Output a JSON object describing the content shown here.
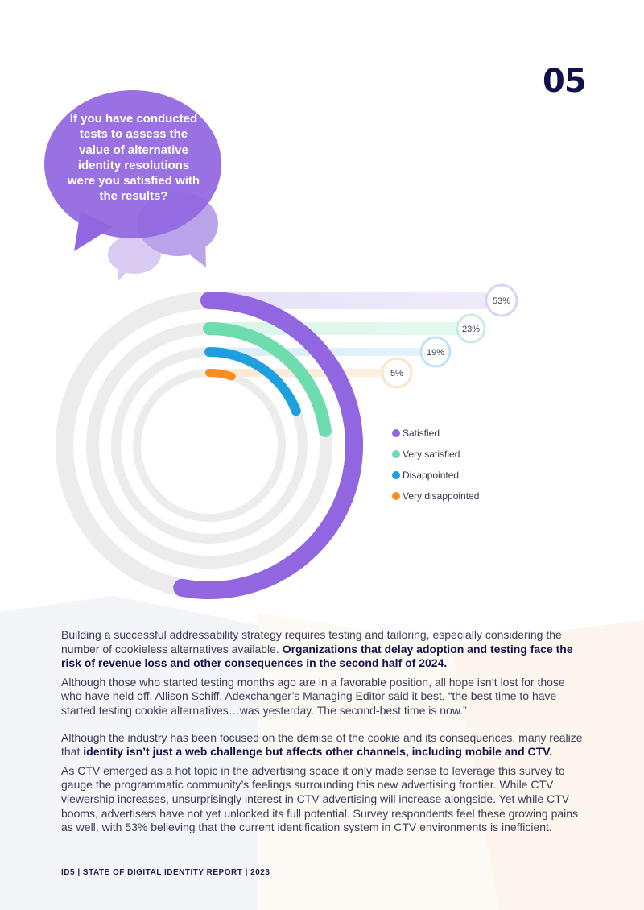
{
  "page_number": "05",
  "question": "If you have conducted tests to assess the value of alternative identity resolutions were you satisfied with the results?",
  "chart_data": {
    "type": "radial-bar",
    "categories": [
      "Satisfied",
      "Very satisfied",
      "Disappointed",
      "Very disappointed"
    ],
    "values": [
      53,
      23,
      19,
      5
    ],
    "value_labels": [
      "53%",
      "23%",
      "19%",
      "5%"
    ],
    "colors": [
      "#9166e0",
      "#6fdcb0",
      "#1ea0e0",
      "#fb8c1e"
    ],
    "track_color": "#ececec",
    "ylim": [
      0,
      100
    ],
    "legend_position": "right"
  },
  "paragraphs": [
    {
      "parts": [
        {
          "text": "Building a successful addressability strategy requires testing and tailoring, especially considering the number of cookieless alternatives available. ",
          "bold": false
        },
        {
          "text": "Organizations that delay adoption and testing face the risk of revenue loss and other consequences in the second half of 2024.",
          "bold": true
        }
      ]
    },
    {
      "parts": [
        {
          "text": "Although those who started testing months ago are in a favorable position, all hope isn’t lost for those who have held off. Allison Schiff, Adexchanger’s Managing Editor said it best, “the best time to have started testing cookie alternatives…was yesterday. The second-best time is now.”",
          "bold": false
        }
      ]
    },
    {
      "parts": [
        {
          "text": "Although the industry has been focused on the demise of the cookie and its consequences, many realize that ",
          "bold": false
        },
        {
          "text": "identity isn’t just a web challenge but affects other channels, including mobile and CTV.",
          "bold": true
        }
      ]
    },
    {
      "parts": [
        {
          "text": "As CTV emerged as a hot topic in the advertising space it only made sense to leverage this survey to gauge the programmatic community’s feelings surrounding this new advertising frontier. While CTV viewership increases, unsurprisingly interest in CTV  advertising will increase alongside. Yet while CTV booms, advertisers have not yet unlocked its full potential. Survey respondents feel these growing pains as well, with 53% believing that the current identification system in CTV environments is inefficient.",
          "bold": false
        }
      ]
    }
  ],
  "footer": "ID5  |  STATE OF DIGITAL IDENTITY REPORT  |  2023"
}
